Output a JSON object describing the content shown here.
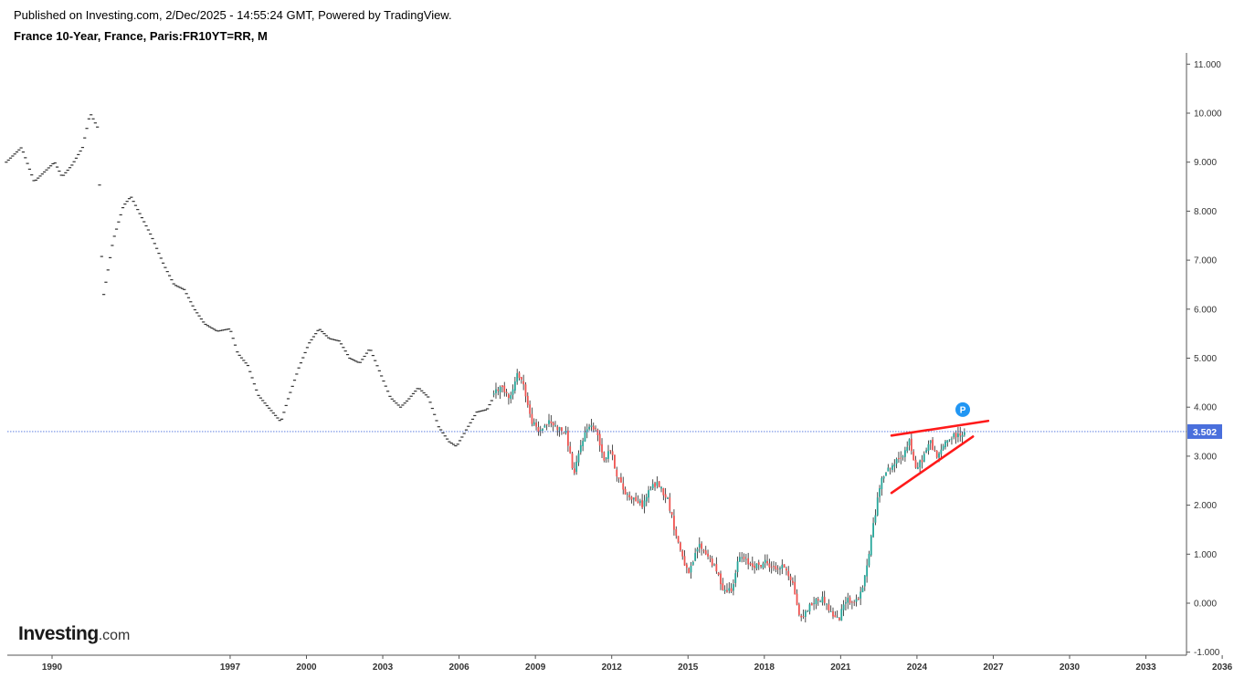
{
  "header": {
    "published": "Published on Investing.com, 2/Dec/2025 - 14:55:24 GMT, Powered by TradingView.",
    "title": "France 10-Year, France, Paris:FR10YT=RR, M"
  },
  "brand": {
    "name": "Investing",
    "suffix": ".com"
  },
  "chart_data": {
    "type": "candlestick",
    "interval": "M",
    "title": "France 10-Year, France, Paris:FR10YT=RR, M",
    "ylim": [
      -1.0,
      11.2
    ],
    "y_ticks": [
      "-1.000",
      "0.000",
      "1.000",
      "2.000",
      "3.000",
      "4.000",
      "5.000",
      "6.000",
      "7.000",
      "8.000",
      "9.000",
      "10.000",
      "11.000"
    ],
    "x_range": [
      1988.2,
      2038.9
    ],
    "x_ticks": [
      "1990",
      "1997",
      "2000",
      "2003",
      "2006",
      "2009",
      "2012",
      "2015",
      "2018",
      "2021",
      "2024",
      "2027",
      "2030",
      "2033",
      "2036"
    ],
    "last_price": 3.502,
    "last_price_label": "3.502",
    "colors": {
      "up": "#26a69a",
      "down": "#ef5350",
      "trendline": "#ff1a1a",
      "price_line": "#4a6fdc",
      "marker": "#2196f3"
    },
    "trendlines": [
      {
        "from": {
          "x": 2023.0,
          "y": 3.42
        },
        "to": {
          "x": 2026.8,
          "y": 3.72
        }
      },
      {
        "from": {
          "x": 2023.0,
          "y": 2.25
        },
        "to": {
          "x": 2026.2,
          "y": 3.4
        }
      }
    ],
    "marker": {
      "label": "P",
      "x": 2025.8,
      "y": 3.95
    },
    "anchors": [
      [
        1988.2,
        9.0
      ],
      [
        1988.8,
        9.3
      ],
      [
        1989.3,
        8.6
      ],
      [
        1989.7,
        8.8
      ],
      [
        1990.1,
        9.0
      ],
      [
        1990.4,
        8.7
      ],
      [
        1990.8,
        8.95
      ],
      [
        1991.2,
        9.3
      ],
      [
        1991.5,
        10.0
      ],
      [
        1991.8,
        9.7
      ],
      [
        1992.0,
        6.2
      ],
      [
        1992.2,
        6.8
      ],
      [
        1992.4,
        7.4
      ],
      [
        1992.8,
        8.1
      ],
      [
        1993.1,
        8.3
      ],
      [
        1993.5,
        7.9
      ],
      [
        1993.9,
        7.5
      ],
      [
        1994.4,
        6.9
      ],
      [
        1994.8,
        6.5
      ],
      [
        1995.2,
        6.4
      ],
      [
        1995.6,
        6.0
      ],
      [
        1996.0,
        5.7
      ],
      [
        1996.5,
        5.55
      ],
      [
        1997.0,
        5.6
      ],
      [
        1997.3,
        5.1
      ],
      [
        1997.7,
        4.85
      ],
      [
        1998.1,
        4.25
      ],
      [
        1998.5,
        4.0
      ],
      [
        1999.0,
        3.7
      ],
      [
        1999.3,
        4.2
      ],
      [
        1999.7,
        4.8
      ],
      [
        2000.1,
        5.3
      ],
      [
        2000.5,
        5.6
      ],
      [
        2000.9,
        5.4
      ],
      [
        2001.3,
        5.35
      ],
      [
        2001.7,
        5.0
      ],
      [
        2002.1,
        4.9
      ],
      [
        2002.5,
        5.2
      ],
      [
        2002.9,
        4.7
      ],
      [
        2003.3,
        4.2
      ],
      [
        2003.7,
        4.0
      ],
      [
        2004.0,
        4.15
      ],
      [
        2004.4,
        4.4
      ],
      [
        2004.8,
        4.2
      ],
      [
        2005.2,
        3.6
      ],
      [
        2005.6,
        3.3
      ],
      [
        2005.9,
        3.2
      ],
      [
        2006.3,
        3.55
      ],
      [
        2006.7,
        3.9
      ],
      [
        2007.1,
        3.95
      ],
      [
        2007.5,
        4.35
      ],
      [
        2007.8,
        4.4
      ],
      [
        2008.1,
        4.2
      ],
      [
        2008.4,
        4.7
      ],
      [
        2008.6,
        4.5
      ],
      [
        2008.9,
        3.75
      ],
      [
        2009.2,
        3.5
      ],
      [
        2009.6,
        3.7
      ],
      [
        2009.9,
        3.6
      ],
      [
        2010.3,
        3.45
      ],
      [
        2010.6,
        2.6
      ],
      [
        2010.9,
        3.3
      ],
      [
        2011.2,
        3.65
      ],
      [
        2011.5,
        3.5
      ],
      [
        2011.8,
        2.9
      ],
      [
        2012.0,
        3.2
      ],
      [
        2012.3,
        2.6
      ],
      [
        2012.6,
        2.25
      ],
      [
        2012.9,
        2.15
      ],
      [
        2013.3,
        2.0
      ],
      [
        2013.6,
        2.35
      ],
      [
        2013.9,
        2.45
      ],
      [
        2014.3,
        2.1
      ],
      [
        2014.6,
        1.4
      ],
      [
        2014.9,
        0.9
      ],
      [
        2015.1,
        0.55
      ],
      [
        2015.5,
        1.2
      ],
      [
        2015.9,
        0.95
      ],
      [
        2016.2,
        0.65
      ],
      [
        2016.5,
        0.25
      ],
      [
        2016.8,
        0.3
      ],
      [
        2017.1,
        0.95
      ],
      [
        2017.5,
        0.8
      ],
      [
        2017.9,
        0.75
      ],
      [
        2018.1,
        0.85
      ],
      [
        2018.5,
        0.7
      ],
      [
        2018.9,
        0.75
      ],
      [
        2019.2,
        0.4
      ],
      [
        2019.5,
        -0.35
      ],
      [
        2019.8,
        -0.1
      ],
      [
        2020.1,
        0.05
      ],
      [
        2020.4,
        0.1
      ],
      [
        2020.7,
        -0.2
      ],
      [
        2021.0,
        -0.35
      ],
      [
        2021.3,
        0.1
      ],
      [
        2021.6,
        0.0
      ],
      [
        2021.9,
        0.2
      ],
      [
        2022.1,
        0.7
      ],
      [
        2022.3,
        1.4
      ],
      [
        2022.5,
        2.0
      ],
      [
        2022.7,
        2.6
      ],
      [
        2022.9,
        2.7
      ],
      [
        2023.2,
        2.85
      ],
      [
        2023.5,
        3.0
      ],
      [
        2023.8,
        3.35
      ],
      [
        2024.0,
        2.7
      ],
      [
        2024.3,
        2.95
      ],
      [
        2024.6,
        3.3
      ],
      [
        2024.9,
        2.95
      ],
      [
        2025.2,
        3.3
      ],
      [
        2025.5,
        3.4
      ],
      [
        2025.8,
        3.45
      ],
      [
        2025.92,
        3.5
      ]
    ]
  }
}
